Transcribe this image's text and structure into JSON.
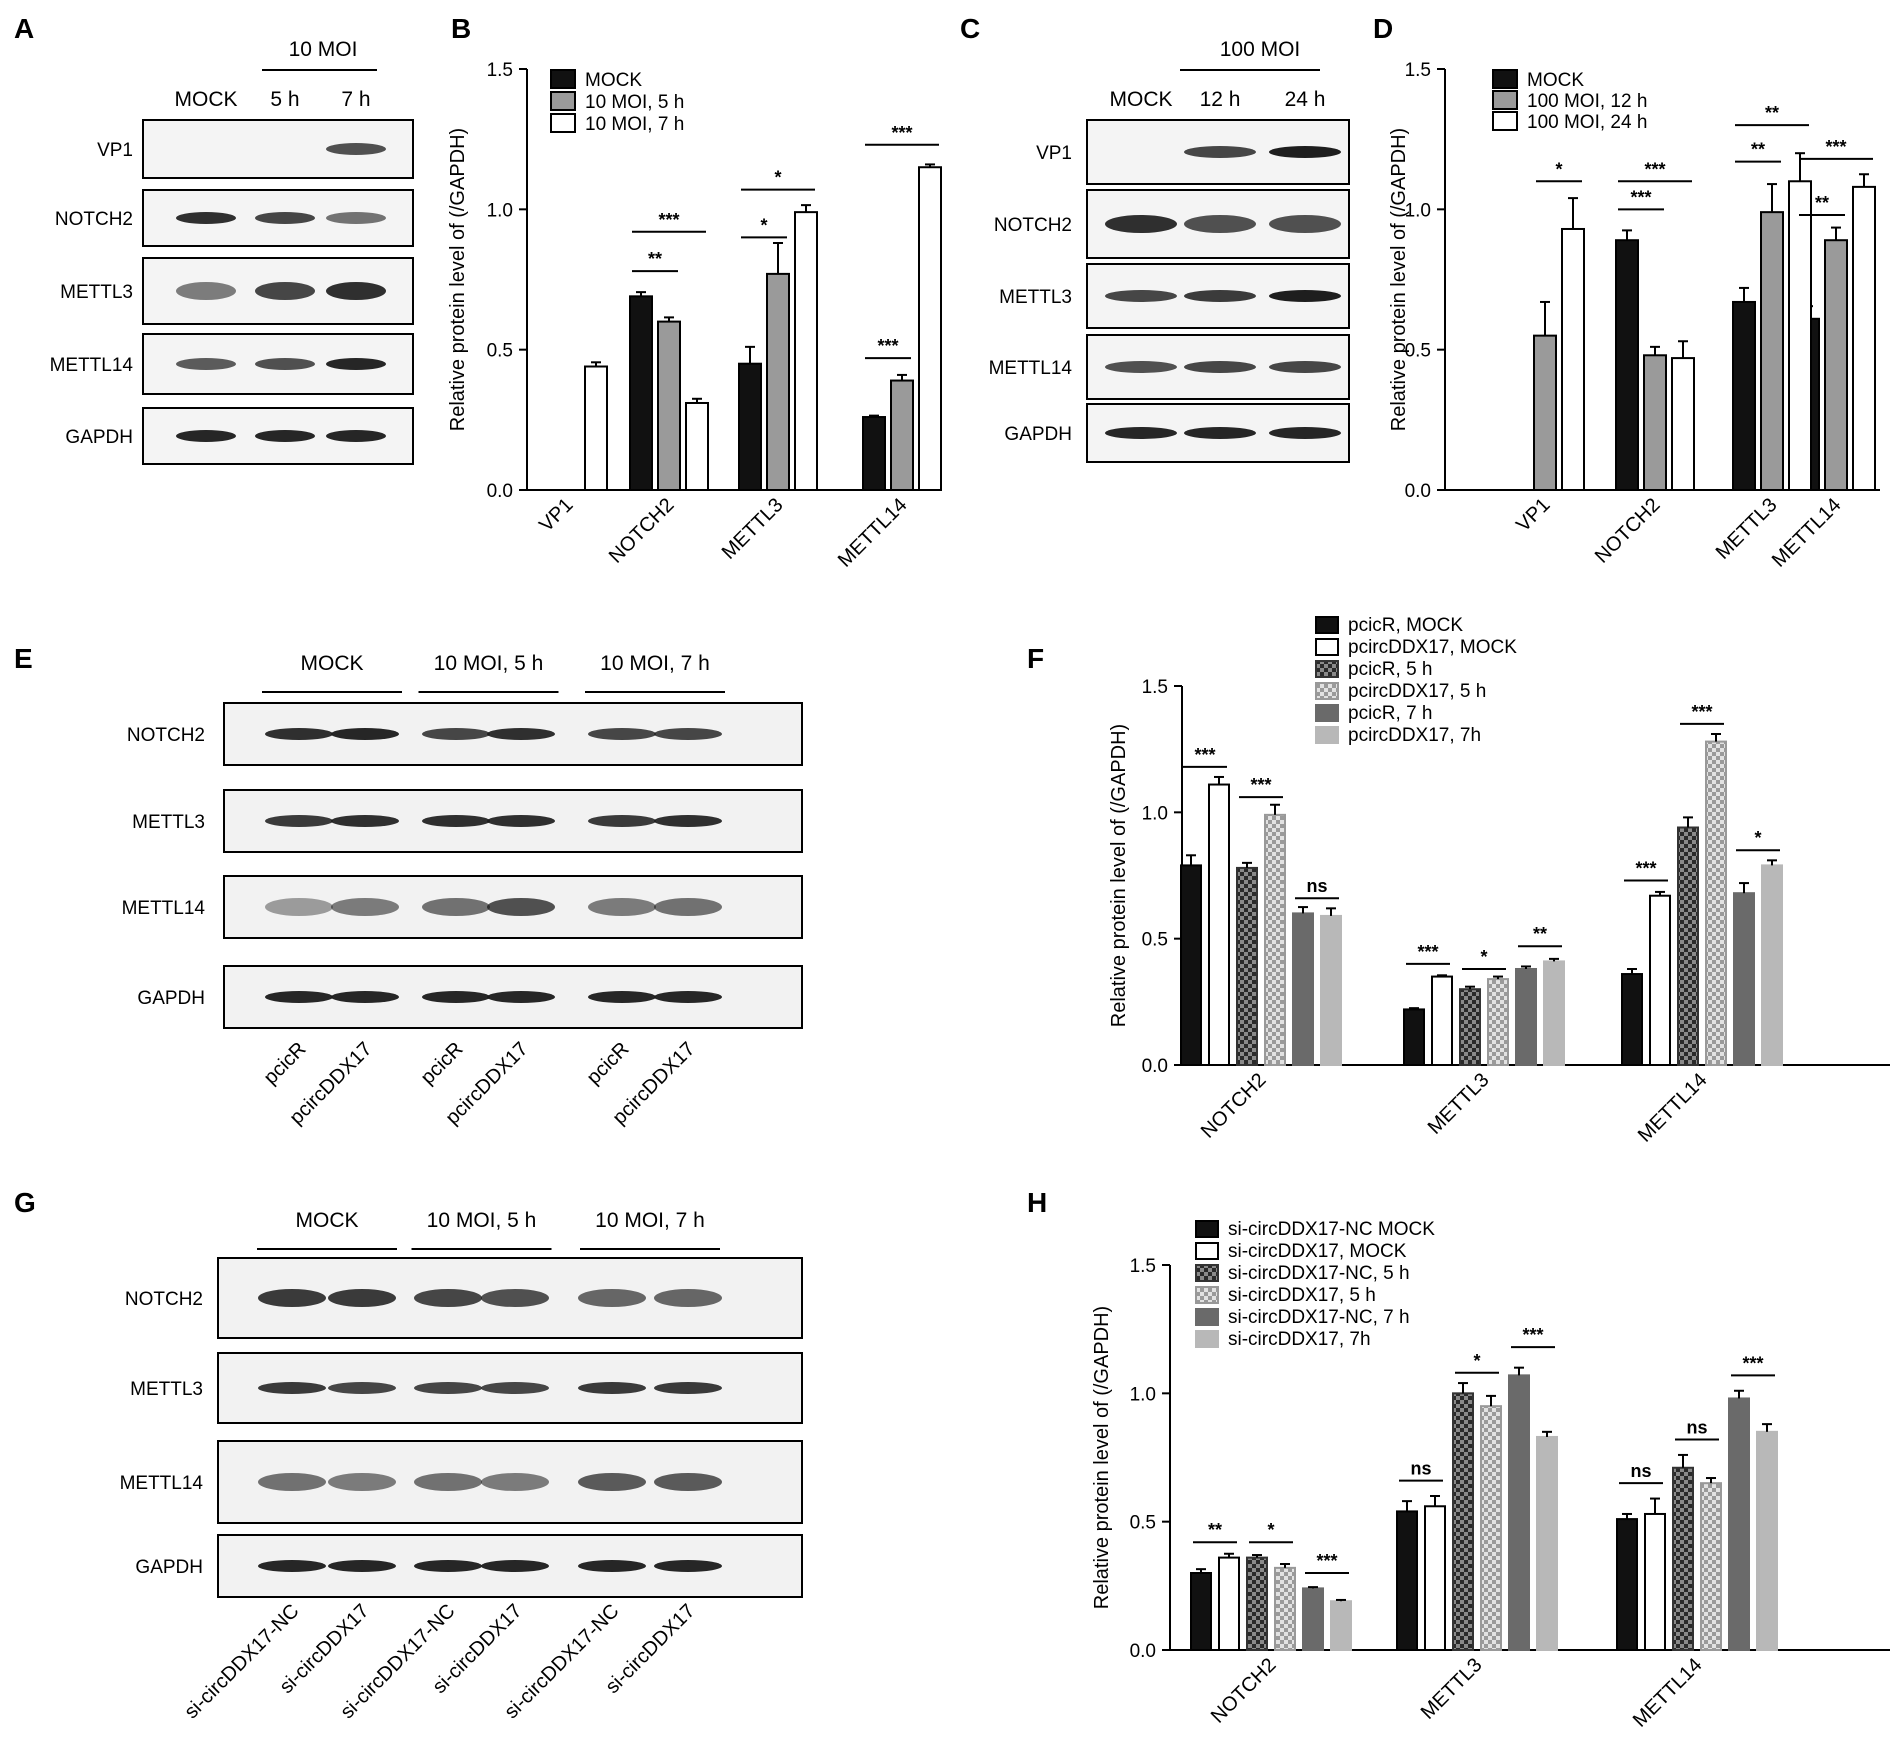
{
  "panel_letters": [
    "A",
    "B",
    "C",
    "D",
    "E",
    "F",
    "G",
    "H"
  ],
  "blots": {
    "A": {
      "header": "10 MOI",
      "lanes": [
        "MOCK",
        "5 h",
        "7 h"
      ],
      "bands": [
        "VP1",
        "NOTCH2",
        "METTL3",
        "METTL14",
        "GAPDH"
      ]
    },
    "C": {
      "header": "100 MOI",
      "lanes": [
        "MOCK",
        "12 h",
        "24 h"
      ],
      "bands": [
        "VP1",
        "NOTCH2",
        "METTL3",
        "METTL14",
        "GAPDH"
      ]
    },
    "E": {
      "groups": [
        "MOCK",
        "10 MOI, 5 h",
        "10 MOI, 7 h"
      ],
      "bands": [
        "NOTCH2",
        "METTL3",
        "METTL14",
        "GAPDH"
      ],
      "samples": [
        "pcicR",
        "pcircDDX17",
        "pcicR",
        "pcircDDX17",
        "pcicR",
        "pcircDDX17"
      ]
    },
    "G": {
      "groups": [
        "MOCK",
        "10 MOI, 5 h",
        "10 MOI, 7 h"
      ],
      "bands": [
        "NOTCH2",
        "METTL3",
        "METTL14",
        "GAPDH"
      ],
      "samples": [
        "si-circDDX17-NC",
        "si-circDDX17",
        "si-circDDX17-NC",
        "si-circDDX17",
        "si-circDDX17-NC",
        "si-circDDX17"
      ]
    }
  },
  "chart_data": [
    {
      "panel": "B",
      "type": "bar",
      "ylabel": "Relative protein level of (/GAPDH)",
      "ylim": [
        0,
        1.5
      ],
      "yticks": [
        "0.0",
        "0.5",
        "1.0",
        "1.5"
      ],
      "categories": [
        "VP1",
        "NOTCH2",
        "METTL3",
        "METTL14"
      ],
      "series": [
        {
          "name": "MOCK",
          "values": [
            0,
            0.69,
            0.45,
            0.26
          ],
          "errors": [
            0,
            0.015,
            0.06,
            0.005
          ]
        },
        {
          "name": "10 MOI, 5 h",
          "values": [
            0,
            0.6,
            0.77,
            0.39
          ],
          "errors": [
            0,
            0.015,
            0.11,
            0.02
          ]
        },
        {
          "name": "10 MOI, 7 h",
          "values": [
            0.44,
            0.31,
            0.99,
            1.15
          ],
          "errors": [
            0.015,
            0.015,
            0.025,
            0.01
          ]
        }
      ],
      "significance": [
        {
          "label": "**",
          "category": 1,
          "from": 0,
          "to": 1,
          "y": 0.78
        },
        {
          "label": "***",
          "category": 1,
          "from": 0,
          "to": 2,
          "y": 0.92
        },
        {
          "label": "*",
          "category": 2,
          "from": 0,
          "to": 1,
          "y": 0.9
        },
        {
          "label": "*",
          "category": 2,
          "from": 0,
          "to": 2,
          "y": 1.07
        },
        {
          "label": "***",
          "category": 3,
          "from": 0,
          "to": 1,
          "y": 0.47
        },
        {
          "label": "***",
          "category": 3,
          "from": 0,
          "to": 2,
          "y": 1.23
        }
      ],
      "legend": "top-left"
    },
    {
      "panel": "D",
      "type": "bar",
      "ylabel": "Relative protein level of (/GAPDH)",
      "ylim": [
        0,
        1.5
      ],
      "yticks": [
        "0.0",
        "0.5",
        "1.0",
        "1.5"
      ],
      "categories": [
        "VP1",
        "NOTCH2",
        "METTL3",
        "METTL14"
      ],
      "series": [
        {
          "name": "MOCK",
          "values": [
            0,
            0.89,
            0.67,
            0.61
          ],
          "errors": [
            0,
            0.035,
            0.05,
            0.045
          ]
        },
        {
          "name": "100 MOI,  12 h",
          "values": [
            0.55,
            0.48,
            0.99,
            0.89
          ],
          "errors": [
            0.12,
            0.03,
            0.1,
            0.045
          ]
        },
        {
          "name": "100 MOI,  24 h",
          "values": [
            0.93,
            0.47,
            1.1,
            1.08
          ],
          "errors": [
            0.11,
            0.06,
            0.1,
            0.045
          ]
        }
      ],
      "significance": [
        {
          "label": "*",
          "category": 0,
          "from": 1,
          "to": 2,
          "y": 1.1
        },
        {
          "label": "***",
          "category": 1,
          "from": 0,
          "to": 1,
          "y": 1.0
        },
        {
          "label": "***",
          "category": 1,
          "from": 0,
          "to": 2,
          "y": 1.1
        },
        {
          "label": "**",
          "category": 2,
          "from": 0,
          "to": 1,
          "y": 1.17
        },
        {
          "label": "**",
          "category": 2,
          "from": 0,
          "to": 2,
          "y": 1.3
        },
        {
          "label": "**",
          "category": 3,
          "from": 0,
          "to": 1,
          "y": 0.98
        },
        {
          "label": "***",
          "category": 3,
          "from": 0,
          "to": 2,
          "y": 1.18
        }
      ],
      "legend": "top-left"
    },
    {
      "panel": "F",
      "type": "bar",
      "ylabel": "Relative protein level of (/GAPDH)",
      "ylim": [
        0,
        1.5
      ],
      "yticks": [
        "0.0",
        "0.5",
        "1.0",
        "1.5"
      ],
      "categories": [
        "NOTCH2",
        "METTL3",
        "METTL14"
      ],
      "series": [
        {
          "name": "pcicR, MOCK",
          "values": [
            0.79,
            0.22,
            0.36
          ],
          "errors": [
            0.04,
            0.005,
            0.02
          ]
        },
        {
          "name": "pcircDDX17, MOCK",
          "values": [
            1.11,
            0.35,
            0.67
          ],
          "errors": [
            0.03,
            0.005,
            0.015
          ]
        },
        {
          "name": "pcicR, 5 h",
          "values": [
            0.78,
            0.3,
            0.94
          ],
          "errors": [
            0.02,
            0.01,
            0.04
          ]
        },
        {
          "name": "pcircDDX17, 5 h",
          "values": [
            0.99,
            0.34,
            1.28
          ],
          "errors": [
            0.04,
            0.01,
            0.03
          ]
        },
        {
          "name": "pcicR, 7 h",
          "values": [
            0.6,
            0.38,
            0.68
          ],
          "errors": [
            0.025,
            0.01,
            0.04
          ]
        },
        {
          "name": "pcircDDX17, 7h",
          "values": [
            0.59,
            0.41,
            0.79
          ],
          "errors": [
            0.03,
            0.01,
            0.02
          ]
        }
      ],
      "significance": [
        {
          "label": "***",
          "category": 0,
          "from": 0,
          "to": 1,
          "y": 1.18
        },
        {
          "label": "***",
          "category": 0,
          "from": 2,
          "to": 3,
          "y": 1.06
        },
        {
          "label": "ns",
          "category": 0,
          "from": 4,
          "to": 5,
          "y": 0.66
        },
        {
          "label": "***",
          "category": 1,
          "from": 0,
          "to": 1,
          "y": 0.4
        },
        {
          "label": "*",
          "category": 1,
          "from": 2,
          "to": 3,
          "y": 0.38
        },
        {
          "label": "**",
          "category": 1,
          "from": 4,
          "to": 5,
          "y": 0.47
        },
        {
          "label": "***",
          "category": 2,
          "from": 0,
          "to": 1,
          "y": 0.73
        },
        {
          "label": "***",
          "category": 2,
          "from": 2,
          "to": 3,
          "y": 1.35
        },
        {
          "label": "*",
          "category": 2,
          "from": 4,
          "to": 5,
          "y": 0.85
        }
      ],
      "legend": "top-left"
    },
    {
      "panel": "H",
      "type": "bar",
      "ylabel": "Relative protein level of (/GAPDH)",
      "ylim": [
        0,
        1.5
      ],
      "yticks": [
        "0.0",
        "0.5",
        "1.0",
        "1.5"
      ],
      "categories": [
        "NOTCH2",
        "METTL3",
        "METTL14"
      ],
      "series": [
        {
          "name": "si-circDDX17-NC MOCK",
          "values": [
            0.3,
            0.54,
            0.51
          ],
          "errors": [
            0.015,
            0.04,
            0.02
          ]
        },
        {
          "name": "si-circDDX17, MOCK",
          "values": [
            0.36,
            0.56,
            0.53
          ],
          "errors": [
            0.015,
            0.04,
            0.06
          ]
        },
        {
          "name": "si-circDDX17-NC, 5 h",
          "values": [
            0.36,
            1.0,
            0.71
          ],
          "errors": [
            0.01,
            0.04,
            0.05
          ]
        },
        {
          "name": "si-circDDX17, 5 h",
          "values": [
            0.32,
            0.95,
            0.65
          ],
          "errors": [
            0.015,
            0.04,
            0.02
          ]
        },
        {
          "name": "si-circDDX17-NC, 7 h",
          "values": [
            0.24,
            1.07,
            0.98
          ],
          "errors": [
            0.005,
            0.03,
            0.03
          ]
        },
        {
          "name": "si-circDDX17, 7h",
          "values": [
            0.19,
            0.83,
            0.85
          ],
          "errors": [
            0.005,
            0.02,
            0.03
          ]
        }
      ],
      "significance": [
        {
          "label": "**",
          "category": 0,
          "from": 0,
          "to": 1,
          "y": 0.42
        },
        {
          "label": "*",
          "category": 0,
          "from": 2,
          "to": 3,
          "y": 0.42
        },
        {
          "label": "***",
          "category": 0,
          "from": 4,
          "to": 5,
          "y": 0.3
        },
        {
          "label": "ns",
          "category": 1,
          "from": 0,
          "to": 1,
          "y": 0.66
        },
        {
          "label": "*",
          "category": 1,
          "from": 2,
          "to": 3,
          "y": 1.08
        },
        {
          "label": "***",
          "category": 1,
          "from": 4,
          "to": 5,
          "y": 1.18
        },
        {
          "label": "ns",
          "category": 2,
          "from": 0,
          "to": 1,
          "y": 0.65
        },
        {
          "label": "ns",
          "category": 2,
          "from": 2,
          "to": 3,
          "y": 0.82
        },
        {
          "label": "***",
          "category": 2,
          "from": 4,
          "to": 5,
          "y": 1.07
        }
      ],
      "legend": "top-left"
    }
  ]
}
